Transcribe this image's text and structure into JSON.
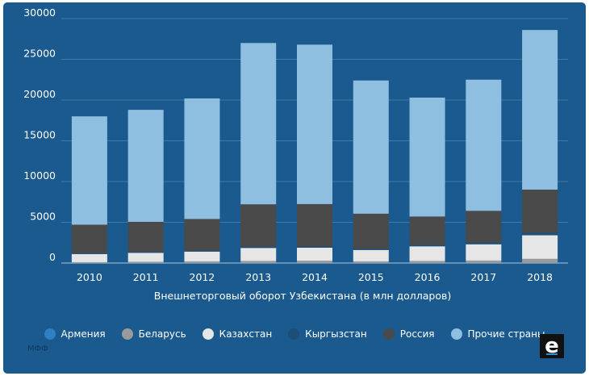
{
  "chart_data": {
    "type": "bar",
    "stacked": true,
    "title": "",
    "xlabel": "Внешнеторговый оборот Узбекистана (в млн долларов)",
    "ylabel": "",
    "ylim": [
      0,
      30000
    ],
    "yticks": [
      "0",
      "5000",
      "10000",
      "15000",
      "20000",
      "25000",
      "30000"
    ],
    "categories": [
      "2010",
      "2011",
      "2012",
      "2013",
      "2014",
      "2015",
      "2016",
      "2017",
      "2018"
    ],
    "series": [
      {
        "name": "Армения",
        "color": "#2f7fc1",
        "values": [
          5,
          5,
          5,
          5,
          5,
          5,
          5,
          5,
          10
        ]
      },
      {
        "name": "Беларусь",
        "color": "#9a9a9a",
        "values": [
          100,
          150,
          200,
          250,
          280,
          200,
          250,
          300,
          500
        ]
      },
      {
        "name": "Казахстан",
        "color": "#e6e6e6",
        "values": [
          1000,
          1100,
          1200,
          1600,
          1600,
          1400,
          1800,
          2000,
          2900
        ]
      },
      {
        "name": "Кыргызстан",
        "color": "#1c4e78",
        "values": [
          100,
          100,
          100,
          150,
          150,
          150,
          150,
          200,
          300
        ]
      },
      {
        "name": "Россия",
        "color": "#4a4a4a",
        "values": [
          3500,
          3700,
          3900,
          5200,
          5200,
          4300,
          3500,
          3900,
          5300
        ]
      },
      {
        "name": "Прочие страны",
        "color": "#8fbfe0",
        "values": [
          13295,
          13745,
          14795,
          19795,
          19565,
          16345,
          14595,
          16095,
          19590
        ]
      }
    ]
  },
  "source": "МФФ",
  "logo": "e"
}
